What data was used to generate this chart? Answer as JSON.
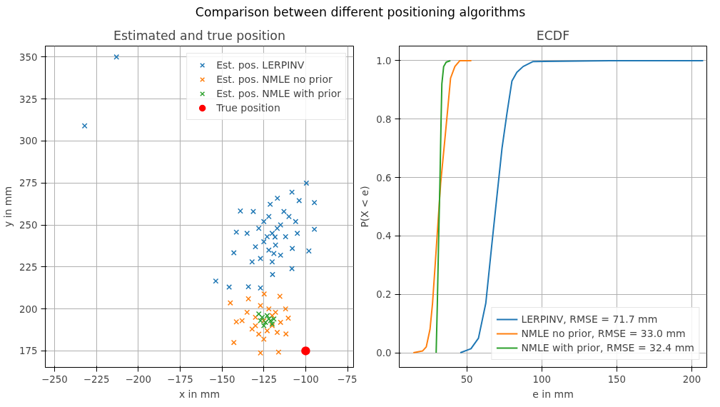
{
  "chart_data": [
    {
      "type": "scatter",
      "title": "Estimated and true position",
      "annotations": [
        "Comparison between different positioning algorithms"
      ],
      "xlabel": "x in mm",
      "ylabel": "y in mm",
      "xlim": [
        -255.5,
        -71.4
      ],
      "ylim": [
        165.2,
        356.5
      ],
      "xticks": [
        -250,
        -225,
        -200,
        -175,
        -150,
        -125,
        -100,
        -75
      ],
      "yticks": [
        175,
        200,
        225,
        250,
        275,
        300,
        325,
        350
      ],
      "grid": true,
      "legend": "top right",
      "marker": "cross",
      "series": [
        {
          "name": "Est. pos. LERPINV",
          "color": "#1f77b4",
          "x": [
            -232,
            -213,
            -153.7,
            -145.7,
            -139,
            -99.6,
            -94.8,
            -94.8,
            -98.1,
            -108.2,
            -119.8,
            -134.2,
            -127,
            -142.9,
            -141.4,
            -121.2,
            -108.2,
            -116.9,
            -131.3,
            -103.9,
            -118.3,
            -125,
            -120,
            -115,
            -122,
            -112,
            -128,
            -118,
            -110,
            -125,
            -130,
            -115,
            -105,
            -120,
            -135,
            -108,
            -113,
            -127,
            -117,
            -122,
            -132,
            -106,
            -123,
            -119
          ],
          "values": [
            309,
            350,
            216.6,
            213,
            258.3,
            274.9,
            263.3,
            247.4,
            234.5,
            224,
            220.5,
            213.2,
            212.5,
            233.4,
            245.7,
            262.3,
            269.5,
            265.9,
            258,
            264.5,
            242.8,
            240,
            245,
            250,
            235,
            243,
            248,
            238,
            255,
            252,
            237,
            232,
            245,
            228,
            245,
            236,
            258,
            230,
            248,
            255,
            228,
            252,
            243,
            233
          ]
        },
        {
          "name": "Est. pos. NMLE no prior",
          "color": "#ff7f0e",
          "x": [
            -145,
            -142.9,
            -127,
            -116.2,
            -111.8,
            -115.4,
            -124.8,
            -134.2,
            -141.4,
            -110.4,
            -125,
            -120,
            -130,
            -118,
            -128,
            -115,
            -122,
            -132,
            -125,
            -117,
            -135,
            -112,
            -127,
            -120,
            -130,
            -138,
            -123
          ],
          "values": [
            203.6,
            180,
            173.8,
            174.3,
            185.1,
            207.5,
            208.9,
            206,
            192.3,
            194.5,
            193,
            190,
            195,
            198,
            185,
            192,
            200,
            188,
            182,
            186,
            198,
            200,
            202,
            196,
            190,
            193,
            187
          ]
        },
        {
          "name": "Est. pos. NMLE with prior",
          "color": "#2ca02c",
          "x": [
            -126,
            -124,
            -121,
            -127,
            -123,
            -120,
            -125,
            -122,
            -128,
            -119
          ],
          "values": [
            195,
            192,
            193,
            193,
            196,
            191,
            190,
            194,
            197,
            194
          ]
        },
        {
          "name": "True position",
          "color": "#ff0000",
          "marker": "circle",
          "x": [
            -100
          ],
          "values": [
            175
          ]
        }
      ]
    },
    {
      "type": "line",
      "title": "ECDF",
      "xlabel": "e in mm",
      "ylabel": "P(X < e)",
      "xlim": [
        5,
        210
      ],
      "ylim": [
        -0.05,
        1.05
      ],
      "xticks": [
        50,
        100,
        150,
        200
      ],
      "yticks": [
        {
          "value": 0,
          "label": "0.0"
        },
        0.2,
        0.4,
        0.6,
        0.8,
        {
          "value": 1,
          "label": "1.0"
        }
      ],
      "grid": true,
      "legend": "bottom right",
      "line_style": "solid",
      "marker": "none",
      "series": [
        {
          "name": "LERPINV, RMSE = 71.7 mm",
          "color": "#1f77b4",
          "x": [
            45.7,
            52.8,
            57.8,
            62.7,
            66.9,
            70.2,
            73.5,
            76.8,
            80.1,
            83.4,
            87.6,
            94.2,
            145.5,
            207.6
          ],
          "values": [
            0,
            0.014,
            0.05,
            0.17,
            0.38,
            0.54,
            0.7,
            0.82,
            0.93,
            0.96,
            0.98,
            0.997,
            1.0,
            1.0
          ]
        },
        {
          "name": "NMLE no prior, RMSE = 33.0 mm",
          "color": "#ff7f0e",
          "x": [
            14.4,
            20.5,
            23,
            25.5,
            27.2,
            28.8,
            30.5,
            32.6,
            35.4,
            37.6,
            39.2,
            42.1,
            45.4,
            53.1
          ],
          "values": [
            0,
            0.006,
            0.02,
            0.08,
            0.17,
            0.29,
            0.42,
            0.58,
            0.73,
            0.85,
            0.94,
            0.98,
            1.0,
            1.0
          ]
        },
        {
          "name": "NMLE with prior, RMSE = 32.4 mm",
          "color": "#2ca02c",
          "x": [
            29.6,
            30.4,
            31.3,
            32.1,
            32.9,
            33.4,
            34.6,
            36.3,
            39.1
          ],
          "values": [
            0,
            0.17,
            0.4,
            0.58,
            0.8,
            0.92,
            0.98,
            0.995,
            1.0
          ]
        }
      ]
    }
  ]
}
